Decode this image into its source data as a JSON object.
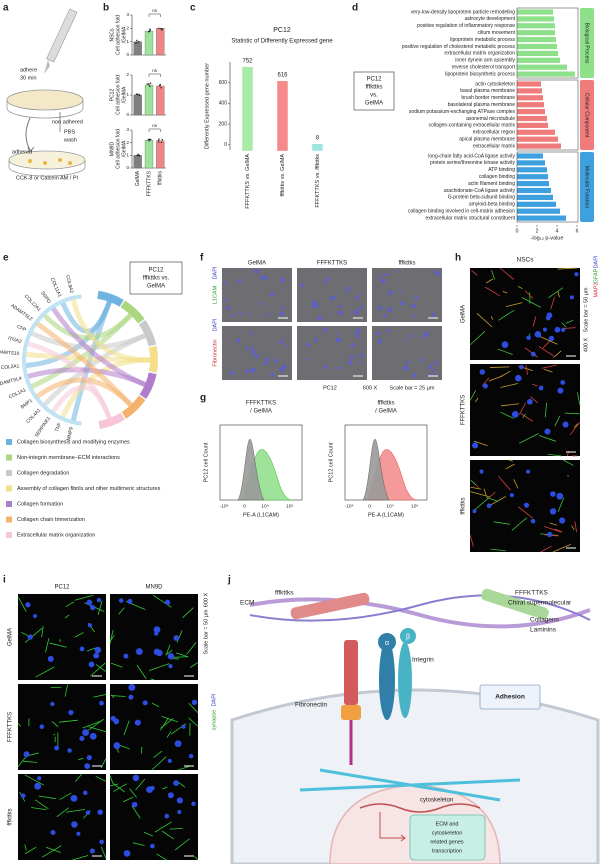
{
  "panel_labels": [
    "a",
    "b",
    "c",
    "d",
    "e",
    "f",
    "g",
    "h",
    "i",
    "j"
  ],
  "panel_a": {
    "steps": [
      "adhere",
      "30 min",
      "non adhered",
      "PBS",
      "wash",
      "adhered",
      "CCK-8 or Calcein AM / PI"
    ]
  },
  "chart_data": [
    {
      "type": "bar",
      "ylabel": [
        "NSCs",
        "Cell adhesion fold",
        "/GelMA"
      ],
      "values": [
        1.0,
        1.8,
        2.0
      ],
      "colors": [
        "#7f7f7f",
        "#9fe39a",
        "#f08585"
      ],
      "ylim": [
        0,
        3
      ],
      "yticks": [
        0,
        1,
        2,
        3
      ],
      "annotation": "ns"
    },
    {
      "type": "bar",
      "ylabel": [
        "PC12",
        "Cell adhesion fold",
        "/GelMA"
      ],
      "values": [
        1.0,
        1.5,
        1.45
      ],
      "colors": [
        "#7f7f7f",
        "#9fe39a",
        "#f08585"
      ],
      "ylim": [
        0,
        2
      ],
      "yticks": [
        0,
        1,
        2
      ],
      "annotation": "ns"
    },
    {
      "type": "bar",
      "ylabel": [
        "MN9D",
        "Cell adhesion fold",
        "/GelMA"
      ],
      "categories": [
        "GelMA",
        "FFFKTTKS",
        "fffkttks"
      ],
      "values": [
        1.0,
        2.2,
        2.15
      ],
      "colors": [
        "#7f7f7f",
        "#9fe39a",
        "#f08585"
      ],
      "ylim": [
        0,
        3
      ],
      "yticks": [
        0,
        1,
        2,
        3
      ],
      "annotation": "ns"
    },
    {
      "type": "bar",
      "title": "PC12",
      "subtitle": "Statistic of Differently Expressed gene",
      "ylabel": "Differently Expressed gene number",
      "categories": [
        "FFFKTTKS vs. GelMA",
        "fffkttks vs. GelMA",
        "FFFKTTKS vs. fffkttks"
      ],
      "values": [
        752,
        616,
        8
      ],
      "colors": [
        "#a8eba4",
        "#f58a8a",
        "#9ee6e0"
      ],
      "ylim": [
        -50,
        800
      ],
      "yticks": [
        0,
        200,
        400,
        600
      ]
    },
    {
      "type": "barh",
      "label": [
        "PC12",
        "fffkttks",
        "vs.",
        "GelMA"
      ],
      "xlabel": "-log₁₀ p-value",
      "xlim": [
        0,
        6
      ],
      "xticks": [
        0,
        2,
        4,
        6
      ],
      "groups": [
        {
          "name": "Biological Process",
          "color": "#8ee08a",
          "categories": [
            "very-low-density lipoprotein particle remodeling",
            "astrocyte development",
            "positive regulation of inflammatory response",
            "cilium movement",
            "lipoprotein metabolic process",
            "positive regulation of cholesterol metabolic process",
            "extracellular matrix organization",
            "inner dynein arm assembly",
            "reverse cholesterol transport",
            "lipoprotein biosynthetic process"
          ],
          "values": [
            3.6,
            3.7,
            3.8,
            3.8,
            3.9,
            4.0,
            4.1,
            4.3,
            5.0,
            5.8
          ]
        },
        {
          "name": "Cellular Component",
          "color": "#f07b7b",
          "categories": [
            "actin cytoskeleton",
            "basal plasma membrane",
            "brush border membrane",
            "basolateral plasma membrane",
            "sodium potassium-exchanging ATPase complex",
            "axonemal microtubule",
            "collagen-containing extracellular matrix",
            "extracellular region",
            "apical plasma membrane",
            "extracellular matrix"
          ],
          "values": [
            2.4,
            2.5,
            2.6,
            2.7,
            2.8,
            3.0,
            3.1,
            3.8,
            4.1,
            4.4
          ]
        },
        {
          "name": "Molecular Function",
          "color": "#3fa0e0",
          "categories": [
            "long-chain fatty acid-CoA ligase activity",
            "protein serine/threonine kinase activity",
            "ATP binding",
            "collagen binding",
            "actin filament binding",
            "arachidonate-CoA ligase activity",
            "G-protein beta-subunit binding",
            "amyloid-beta binding",
            "collagen binding involved in cell-matrix adhesion",
            "extracellular matrix structural constituent"
          ],
          "values": [
            2.6,
            2.8,
            3.0,
            3.1,
            3.2,
            3.4,
            3.6,
            3.9,
            4.3,
            4.9
          ]
        }
      ]
    }
  ],
  "panel_e": {
    "title": [
      "PC12",
      "fffkttks vs.",
      "GelMA"
    ],
    "genes": [
      "MMP9",
      "TNF",
      "SERPINE1",
      "COL4A1",
      "BMP1",
      "COL1A1",
      "ADAMTSL4",
      "COL2A1",
      "ADAMTS10",
      "ITGA2",
      "CFP",
      "ADAMTSL2",
      "COL12A1",
      "SSPO",
      "COL11A1",
      "COL9A2"
    ],
    "legend": [
      {
        "name": "Collagen biosynthesis and modifying enzymes",
        "color": "#6fb3e0"
      },
      {
        "name": "Non-integrin membrane−ECM interactions",
        "color": "#a9d67e"
      },
      {
        "name": "Collagen degradation",
        "color": "#c9c9c9"
      },
      {
        "name": "Assembly of collagen fibrils and other multimeric structures",
        "color": "#f3df88"
      },
      {
        "name": "Collagen formation",
        "color": "#b07ccc"
      },
      {
        "name": "Collagen chain trimerization",
        "color": "#f4b16a"
      },
      {
        "name": "Extracellular matrix organization",
        "color": "#f6c6d8"
      }
    ]
  },
  "panel_f": {
    "columns": [
      "GelMA",
      "FFFKTTKS",
      "fffkttks"
    ],
    "rows": [
      {
        "stain": "L1CAM",
        "counter": "DAPI"
      },
      {
        "stain": "Fibronectin",
        "counter": "DAPI"
      }
    ],
    "caption": [
      "PC12",
      "600 X",
      "Scale bar = 25 μm"
    ]
  },
  "panel_g": {
    "plots": [
      {
        "title": [
          "FFFKTTKS",
          "/ GelMA"
        ]
      },
      {
        "title": [
          "fffkttks",
          "/ GelMA"
        ]
      }
    ],
    "ylabel": "PC12 cell Count",
    "xlabel": "PE-A (L1CAM)",
    "xticks": [
      "-10⁴",
      "0",
      "10⁴",
      "10⁵"
    ]
  },
  "panel_h": {
    "title": "NSCs",
    "rows": [
      "GelMA",
      "FFFKTTKS",
      "fffkttks"
    ],
    "magnification": "400 X",
    "scale": "Scale bar = 50 μm",
    "stains": [
      "MAP2",
      "GFAP",
      "DAPI"
    ]
  },
  "panel_i": {
    "columns": [
      "PC12",
      "MN9D"
    ],
    "rows": [
      "GelMA",
      "FFFKTTKS",
      "fffkttks"
    ],
    "magnification": "600 X",
    "scale": "Scale bar = 50 μm",
    "stains": [
      "synapse",
      "DAPI"
    ]
  },
  "panel_j": {
    "peptide_d": "fffkttks",
    "peptide_l": "FFFKTTKS",
    "ecm": "ECM",
    "chiral": "Chiral supermolecular",
    "collagens": "Collagens",
    "laminins": "Laminins",
    "integrin": "Integrin",
    "alpha": "α",
    "beta": "β",
    "fibronectin": "Fibronectin",
    "adhesion": "Adhesion",
    "cytoskeleton": "cytoskeleton",
    "transcription": [
      "ECM and",
      "cytoskeleton",
      "related genes",
      "transcription"
    ]
  }
}
